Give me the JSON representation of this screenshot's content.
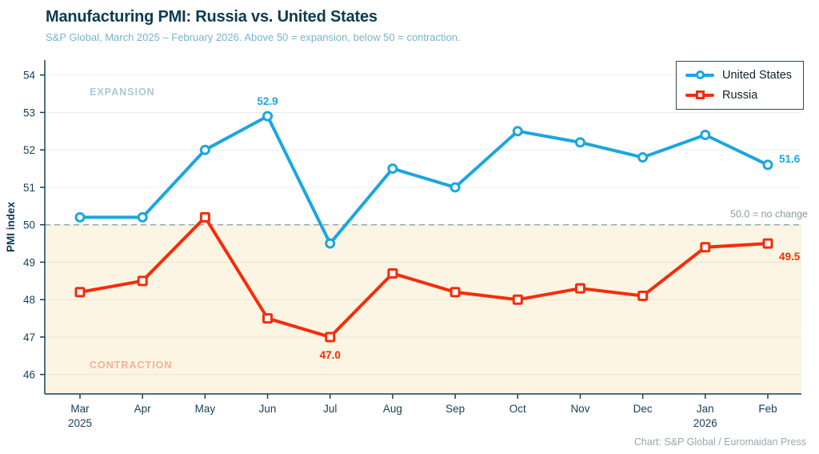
{
  "header": {
    "title": "Manufacturing PMI: Russia vs. United States",
    "subtitle": "S&P Global, March 2025 – February 2026. Above 50 = expansion, below 50 = contraction."
  },
  "footer": {
    "credit": "Chart: S&P Global / Euromaidan Press"
  },
  "legend": {
    "items": [
      {
        "label": "United States",
        "color": "#1ba6e0",
        "marker": "circle"
      },
      {
        "label": "Russia",
        "color": "#f42d0a",
        "marker": "square"
      }
    ]
  },
  "colors": {
    "title": "#0d3a50",
    "subtitle": "#76b4cb",
    "us_blue": "#1ba6e0",
    "russia_red": "#f42d0a",
    "contraction_fill": "#fcf5e3",
    "expansion_text": "#aac8d6",
    "contraction_text": "#f6b09c",
    "gridline": "rgba(120,150,165,0.16)",
    "reference_dash": "#9ba7ad",
    "reference_text": "#8e9ba3",
    "axis": "#1a4055",
    "tick_text": "#173f54",
    "footer_text": "#9aa8b0"
  },
  "chart_data": {
    "type": "line",
    "title": "Manufacturing PMI: Russia vs. United States",
    "xlabel": "",
    "ylabel": "PMI index",
    "categories": [
      "Mar",
      "Apr",
      "May",
      "Jun",
      "Jul",
      "Aug",
      "Sep",
      "Oct",
      "Nov",
      "Dec",
      "Jan",
      "Feb"
    ],
    "category_sublabels": [
      "2025",
      "",
      "",
      "",
      "",
      "",
      "",
      "",
      "",
      "",
      "2026",
      ""
    ],
    "series": [
      {
        "name": "United States",
        "color": "#1ba6e0",
        "marker": "circle",
        "values": [
          50.2,
          50.2,
          52.0,
          52.9,
          49.5,
          51.5,
          51.0,
          52.5,
          52.2,
          51.8,
          52.4,
          51.6
        ]
      },
      {
        "name": "Russia",
        "color": "#f42d0a",
        "marker": "square",
        "values": [
          48.2,
          48.5,
          50.2,
          47.5,
          47.0,
          48.7,
          48.2,
          48.0,
          48.3,
          48.1,
          49.4,
          49.5
        ]
      }
    ],
    "yticks": [
      46,
      47,
      48,
      49,
      50,
      51,
      52,
      53,
      54
    ],
    "ylim": [
      45.48,
      54.4
    ],
    "grid": "horizontal",
    "legend_position": "top-right",
    "reference_line": {
      "value": 50.0,
      "label": "50.0 = no change"
    },
    "zones": {
      "expansion_label": "EXPANSION",
      "contraction_label": "CONTRACTION",
      "contraction_below": 50.0
    },
    "annotations": [
      {
        "series": 0,
        "index": 3,
        "label": "52.9",
        "position": "top"
      },
      {
        "series": 0,
        "index": 11,
        "label": "51.6",
        "position": "right"
      },
      {
        "series": 1,
        "index": 4,
        "label": "47.0",
        "position": "bottom"
      },
      {
        "series": 1,
        "index": 11,
        "label": "49.5",
        "position": "bottom-right"
      }
    ]
  }
}
